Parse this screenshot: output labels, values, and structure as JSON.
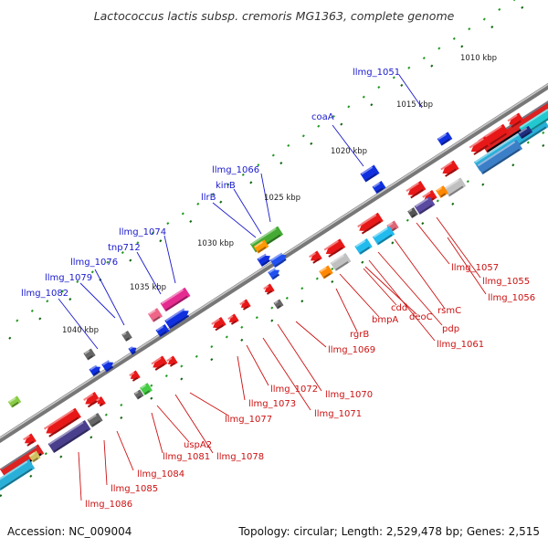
{
  "title": "Lactococcus lactis subsp. cremoris MG1363, complete genome",
  "footer": {
    "accession": "Accession: NC_009004",
    "topology": "Topology: circular; Length: 2,529,478 bp; Genes: 2,515"
  },
  "colors": {
    "upper_label": "#1a1acc",
    "lower_label": "#cc1111",
    "backbone": "#808080",
    "ticks": "#229922"
  },
  "kbp_ticks": [
    "1010 kbp",
    "1015 kbp",
    "1020 kbp",
    "1025 kbp",
    "1030 kbp",
    "1035 kbp",
    "1040 kbp"
  ],
  "upper_labels": [
    "llmg_1051",
    "coaA",
    "llmg_1066",
    "kinB",
    "llrB",
    "llmg_1074",
    "tnp712",
    "llmg_1076",
    "llmg_1079",
    "llmg_1082"
  ],
  "lower_labels": [
    "llmg_1057",
    "llmg_1055",
    "llmg_1056",
    "rsmC",
    "pdp",
    "llmg_1061",
    "deoC",
    "cdd",
    "bmpA",
    "rgrB",
    "llmg_1069",
    "llmg_1070",
    "llmg_1071",
    "llmg_1072",
    "llmg_1073",
    "llmg_1077",
    "llmg_1078",
    "uspA2",
    "llmg_1081",
    "llmg_1084",
    "llmg_1085",
    "llmg_1086"
  ]
}
